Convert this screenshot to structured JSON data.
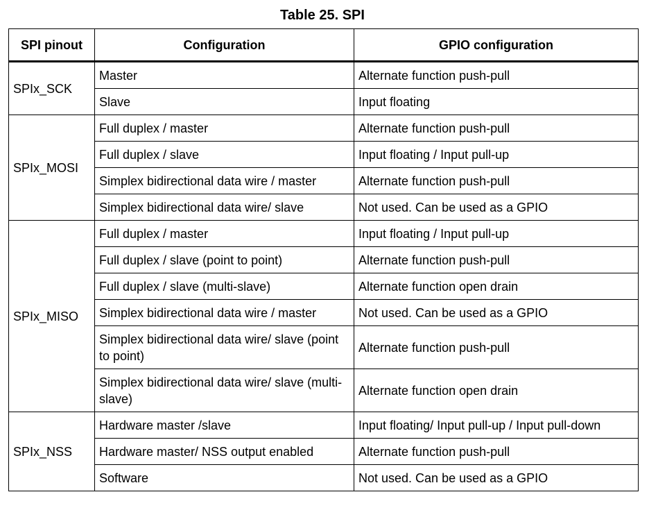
{
  "caption": "Table 25. SPI",
  "headers": [
    "SPI pinout",
    "Configuration",
    "GPIO configuration"
  ],
  "groups": [
    {
      "pinout": "SPIx_SCK",
      "rows": [
        {
          "config": "Master",
          "gpio": "Alternate function push-pull"
        },
        {
          "config": "Slave",
          "gpio": "Input floating"
        }
      ]
    },
    {
      "pinout": "SPIx_MOSI",
      "rows": [
        {
          "config": "Full duplex / master",
          "gpio": "Alternate function push-pull"
        },
        {
          "config": "Full duplex /  slave",
          "gpio": "Input floating / Input pull-up"
        },
        {
          "config": "Simplex bidirectional data wire / master",
          "gpio": "Alternate function push-pull"
        },
        {
          "config": "Simplex bidirectional data wire/ slave",
          "gpio": "Not used. Can be used as a GPIO"
        }
      ]
    },
    {
      "pinout": "SPIx_MISO",
      "rows": [
        {
          "config": "Full duplex / master",
          "gpio": "Input floating / Input pull-up"
        },
        {
          "config": "Full duplex /  slave (point to point)",
          "gpio": "Alternate function push-pull"
        },
        {
          "config": "Full duplex /  slave (multi-slave)",
          "gpio": "Alternate function open drain"
        },
        {
          "config": "Simplex bidirectional data wire / master",
          "gpio": "Not used. Can be used as a GPIO"
        },
        {
          "config": "Simplex bidirectional data wire/ slave (point to point)",
          "gpio": "Alternate function push-pull"
        },
        {
          "config": "Simplex bidirectional data wire/ slave (multi-slave)",
          "gpio": "Alternate function open drain"
        }
      ]
    },
    {
      "pinout": "SPIx_NSS",
      "rows": [
        {
          "config": "Hardware master /slave",
          "gpio": "Input floating/ Input pull-up / Input pull-down"
        },
        {
          "config": "Hardware master/ NSS output enabled",
          "gpio": "Alternate function push-pull"
        },
        {
          "config": "Software",
          "gpio": "Not used. Can be used as a GPIO"
        }
      ]
    }
  ]
}
